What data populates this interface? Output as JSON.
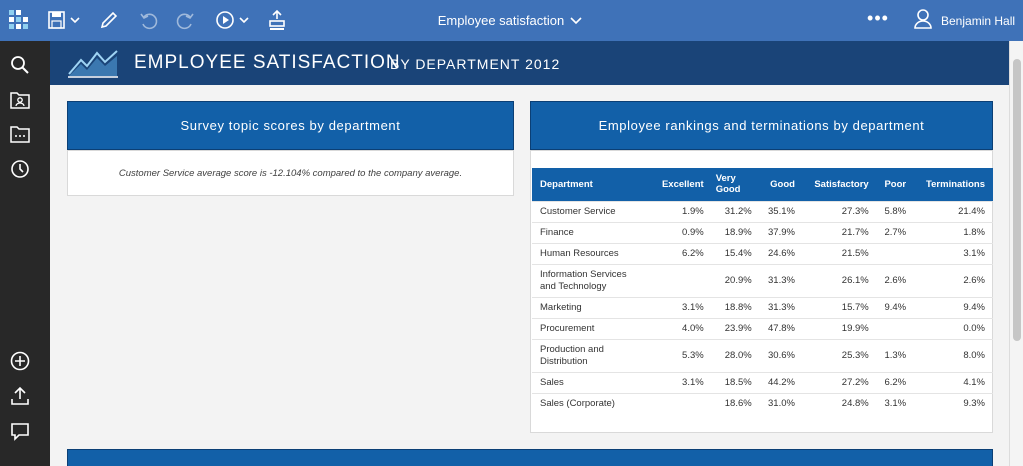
{
  "topbar": {
    "title": "Employee satisfaction",
    "user": "Benjamin Hall",
    "more": "•••"
  },
  "sidebar": {
    "icons": [
      "search-icon",
      "folder-user-icon",
      "folder-icon",
      "recent-icon",
      "add-icon",
      "upload-icon",
      "comment-icon"
    ]
  },
  "banner": {
    "title": "EMPLOYEE SATISFACTION",
    "subtitle": "BY DEPARTMENT 2012"
  },
  "panel1": {
    "title": "Survey topic scores by department",
    "text": "Customer Service average score is -12.104% compared to the company average."
  },
  "panel2": {
    "title": "Employee rankings and terminations by department",
    "columns": [
      "Department",
      "Excellent",
      "Very Good",
      "Good",
      "Satisfactory",
      "Poor",
      "Terminations"
    ],
    "rows": [
      [
        "Customer Service",
        "1.9%",
        "31.2%",
        "35.1%",
        "27.3%",
        "5.8%",
        "21.4%"
      ],
      [
        "Finance",
        "0.9%",
        "18.9%",
        "37.9%",
        "21.7%",
        "2.7%",
        "1.8%"
      ],
      [
        "Human Resources",
        "6.2%",
        "15.4%",
        "24.6%",
        "21.5%",
        "",
        "3.1%"
      ],
      [
        "Information Services and Technology",
        "",
        "20.9%",
        "31.3%",
        "26.1%",
        "2.6%",
        "2.6%"
      ],
      [
        "Marketing",
        "3.1%",
        "18.8%",
        "31.3%",
        "15.7%",
        "9.4%",
        "9.4%"
      ],
      [
        "Procurement",
        "4.0%",
        "23.9%",
        "47.8%",
        "19.9%",
        "",
        "0.0%"
      ],
      [
        "Production and Distribution",
        "5.3%",
        "28.0%",
        "30.6%",
        "25.3%",
        "1.3%",
        "8.0%"
      ],
      [
        "Sales",
        "3.1%",
        "18.5%",
        "44.2%",
        "27.2%",
        "6.2%",
        "4.1%"
      ],
      [
        "Sales (Corporate)",
        "",
        "18.6%",
        "31.0%",
        "24.8%",
        "3.1%",
        "9.3%"
      ]
    ]
  },
  "colors": {
    "topbar": "#3f72b8",
    "sidebar": "#282828",
    "banner": "#1a4478",
    "panel_header": "#1260a8"
  }
}
